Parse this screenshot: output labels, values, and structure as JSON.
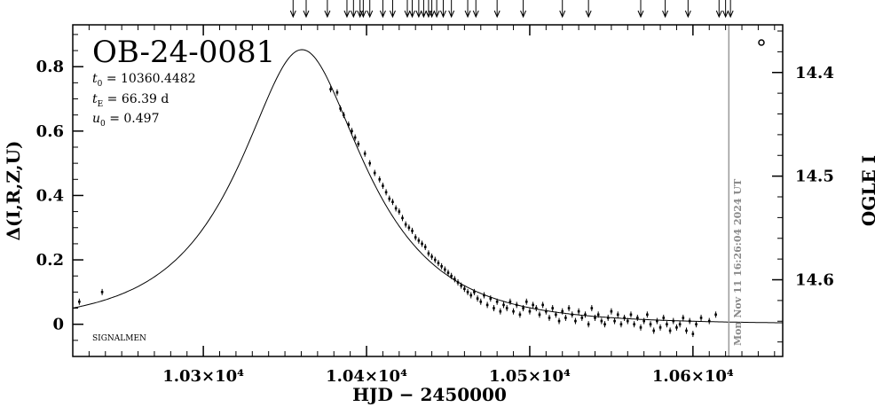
{
  "chart_data": {
    "type": "scatter",
    "title": "OB-24-0081",
    "params": [
      {
        "symbol": "t",
        "sub": "0",
        "text": " = 10360.4482"
      },
      {
        "symbol": "t",
        "sub": "E",
        "text": " = 66.39 d"
      },
      {
        "symbol": "u",
        "sub": "0",
        "text": " = 0.497"
      }
    ],
    "annotation": "SIGNALMEN",
    "timestamp": "Mon Nov 11 16:26:04 2024 UT",
    "xlabel": "HJD − 2450000",
    "ylabel": "Δ(I,R,Z,U)",
    "ylabel_right": "OGLE I",
    "xlim": [
      10220,
      10655
    ],
    "ylim": [
      -0.1,
      0.93
    ],
    "right_ylim": [
      14.674,
      14.354
    ],
    "x_ticks": [
      {
        "value": 10300,
        "label": "1.03×10⁴"
      },
      {
        "value": 10400,
        "label": "1.04×10⁴"
      },
      {
        "value": 10500,
        "label": "1.05×10⁴"
      },
      {
        "value": 10600,
        "label": "1.06×10⁴"
      }
    ],
    "y_ticks": [
      {
        "value": 0,
        "label": "0"
      },
      {
        "value": 0.2,
        "label": "0.2"
      },
      {
        "value": 0.4,
        "label": "0.4"
      },
      {
        "value": 0.6,
        "label": "0.6"
      },
      {
        "value": 0.8,
        "label": "0.8"
      }
    ],
    "right_ticks": [
      {
        "value": 14.4,
        "label": "14.4"
      },
      {
        "value": 14.5,
        "label": "14.5"
      },
      {
        "value": 14.6,
        "label": "14.6"
      }
    ],
    "current_time_x": 10622,
    "model": {
      "name": "PSPL",
      "t0": 10360.4482,
      "tE": 66.39,
      "u0": 0.497,
      "x_range": [
        10220,
        10655
      ]
    },
    "series": [
      {
        "points": [
          [
            10224,
            0.07
          ],
          [
            10238,
            0.1
          ],
          [
            10378,
            0.73
          ],
          [
            10382,
            0.72
          ],
          [
            10384,
            0.67
          ],
          [
            10386,
            0.65
          ],
          [
            10389,
            0.62
          ],
          [
            10391,
            0.6
          ],
          [
            10393,
            0.58
          ],
          [
            10395,
            0.56
          ],
          [
            10399,
            0.53
          ],
          [
            10402,
            0.5
          ],
          [
            10405,
            0.47
          ],
          [
            10408,
            0.45
          ],
          [
            10410,
            0.43
          ],
          [
            10412,
            0.41
          ],
          [
            10414,
            0.39
          ],
          [
            10416,
            0.38
          ],
          [
            10418,
            0.36
          ],
          [
            10420,
            0.35
          ],
          [
            10422,
            0.33
          ],
          [
            10424,
            0.31
          ],
          [
            10426,
            0.3
          ],
          [
            10428,
            0.29
          ],
          [
            10430,
            0.27
          ],
          [
            10432,
            0.26
          ],
          [
            10434,
            0.25
          ],
          [
            10436,
            0.24
          ],
          [
            10438,
            0.22
          ],
          [
            10440,
            0.21
          ],
          [
            10442,
            0.2
          ],
          [
            10444,
            0.19
          ],
          [
            10446,
            0.18
          ],
          [
            10448,
            0.17
          ],
          [
            10450,
            0.16
          ],
          [
            10452,
            0.15
          ],
          [
            10454,
            0.14
          ],
          [
            10456,
            0.13
          ],
          [
            10458,
            0.12
          ],
          [
            10460,
            0.11
          ],
          [
            10462,
            0.1
          ],
          [
            10464,
            0.09
          ],
          [
            10466,
            0.1
          ],
          [
            10468,
            0.08
          ],
          [
            10470,
            0.07
          ],
          [
            10472,
            0.09
          ],
          [
            10474,
            0.06
          ],
          [
            10476,
            0.08
          ],
          [
            10478,
            0.05
          ],
          [
            10480,
            0.07
          ],
          [
            10482,
            0.04
          ],
          [
            10484,
            0.06
          ],
          [
            10486,
            0.05
          ],
          [
            10488,
            0.07
          ],
          [
            10490,
            0.04
          ],
          [
            10492,
            0.06
          ],
          [
            10494,
            0.03
          ],
          [
            10496,
            0.05
          ],
          [
            10498,
            0.07
          ],
          [
            10500,
            0.04
          ],
          [
            10502,
            0.06
          ],
          [
            10504,
            0.05
          ],
          [
            10506,
            0.03
          ],
          [
            10508,
            0.06
          ],
          [
            10510,
            0.04
          ],
          [
            10512,
            0.02
          ],
          [
            10514,
            0.05
          ],
          [
            10516,
            0.03
          ],
          [
            10518,
            0.01
          ],
          [
            10520,
            0.04
          ],
          [
            10522,
            0.02
          ],
          [
            10524,
            0.05
          ],
          [
            10526,
            0.03
          ],
          [
            10528,
            0.01
          ],
          [
            10530,
            0.04
          ],
          [
            10532,
            0.02
          ],
          [
            10534,
            0.03
          ],
          [
            10536,
            0.0
          ],
          [
            10538,
            0.05
          ],
          [
            10540,
            0.02
          ],
          [
            10542,
            0.03
          ],
          [
            10544,
            0.01
          ],
          [
            10546,
            0.0
          ],
          [
            10548,
            0.02
          ],
          [
            10550,
            0.04
          ],
          [
            10552,
            0.01
          ],
          [
            10554,
            0.03
          ],
          [
            10556,
            0.0
          ],
          [
            10558,
            0.02
          ],
          [
            10560,
            0.01
          ],
          [
            10562,
            0.03
          ],
          [
            10564,
            0.0
          ],
          [
            10566,
            0.02
          ],
          [
            10568,
            -0.01
          ],
          [
            10570,
            0.01
          ],
          [
            10572,
            0.03
          ],
          [
            10574,
            0.0
          ],
          [
            10576,
            -0.02
          ],
          [
            10578,
            0.01
          ],
          [
            10580,
            -0.01
          ],
          [
            10582,
            0.02
          ],
          [
            10584,
            0.0
          ],
          [
            10586,
            -0.02
          ],
          [
            10588,
            0.01
          ],
          [
            10590,
            -0.01
          ],
          [
            10592,
            0.0
          ],
          [
            10594,
            0.02
          ],
          [
            10596,
            -0.02
          ],
          [
            10598,
            0.01
          ],
          [
            10600,
            -0.03
          ],
          [
            10602,
            0.0
          ],
          [
            10605,
            0.02
          ],
          [
            10610,
            0.01
          ],
          [
            10614,
            0.03
          ]
        ]
      }
    ],
    "upper_arrows_x": [
      10355,
      10363,
      10376,
      10388,
      10392,
      10396,
      10398,
      10402,
      10410,
      10416,
      10425,
      10428,
      10432,
      10435,
      10438,
      10440,
      10443,
      10447,
      10452,
      10462,
      10467,
      10480,
      10496,
      10520,
      10536,
      10568,
      10583,
      10597,
      10616,
      10620,
      10623
    ]
  }
}
